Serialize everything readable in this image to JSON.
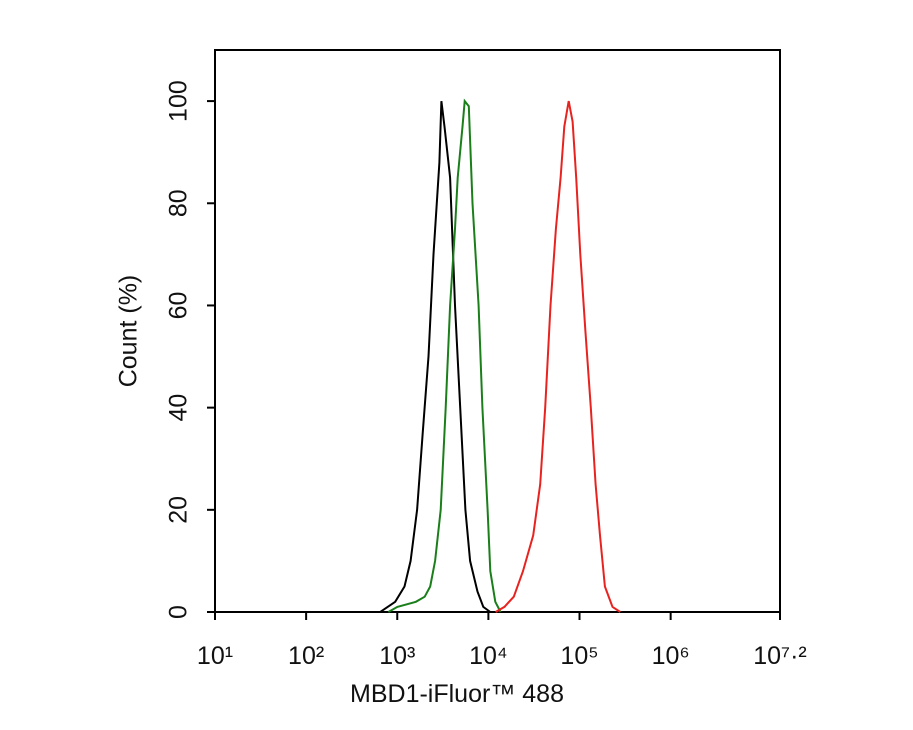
{
  "chart_data": {
    "type": "line",
    "x_label": "MBD1-iFluor™ 488",
    "y_label": "Count  (%)",
    "x_scale": "log",
    "xlim": [
      10,
      15848932
    ],
    "xticks": [
      {
        "value": 10,
        "label": "10¹"
      },
      {
        "value": 100,
        "label": "10²"
      },
      {
        "value": 1000,
        "label": "10³"
      },
      {
        "value": 10000,
        "label": "10⁴"
      },
      {
        "value": 100000,
        "label": "10⁵"
      },
      {
        "value": 1000000,
        "label": "10⁶"
      },
      {
        "value": 15848932,
        "label": "10⁷·²"
      }
    ],
    "ylim": [
      0,
      110
    ],
    "yticks": [
      0,
      20,
      40,
      60,
      80,
      100
    ],
    "series": [
      {
        "color": "#000000",
        "x": [
          650,
          950,
          1200,
          1400,
          1650,
          1900,
          2200,
          2500,
          2900,
          3050,
          3300,
          3800,
          4300,
          4900,
          5600,
          6300,
          7600,
          8800,
          10500
        ],
        "values": [
          0,
          2,
          5,
          10,
          20,
          35,
          50,
          70,
          88,
          100,
          95,
          85,
          60,
          40,
          20,
          10,
          4,
          1,
          0
        ]
      },
      {
        "color": "#1a7f1a",
        "x": [
          800,
          1000,
          1600,
          2000,
          2300,
          2600,
          3000,
          3400,
          3800,
          4300,
          4600,
          5200,
          5500,
          6100,
          6700,
          7800,
          8600,
          9800,
          10500,
          11900,
          13600
        ],
        "values": [
          0,
          1,
          2,
          3,
          5,
          10,
          20,
          40,
          60,
          75,
          85,
          95,
          100,
          99,
          80,
          60,
          40,
          20,
          8,
          2,
          0
        ]
      },
      {
        "color": "#e8231f",
        "x": [
          12000,
          15000,
          19000,
          24000,
          31000,
          37000,
          42000,
          48000,
          55000,
          62000,
          68000,
          76000,
          84000,
          92000,
          102000,
          116000,
          133000,
          150000,
          168000,
          190000,
          230000,
          280000
        ],
        "values": [
          0,
          1,
          3,
          8,
          15,
          25,
          40,
          60,
          75,
          85,
          95,
          100,
          96,
          85,
          70,
          55,
          40,
          25,
          15,
          5,
          1,
          0
        ]
      }
    ]
  }
}
